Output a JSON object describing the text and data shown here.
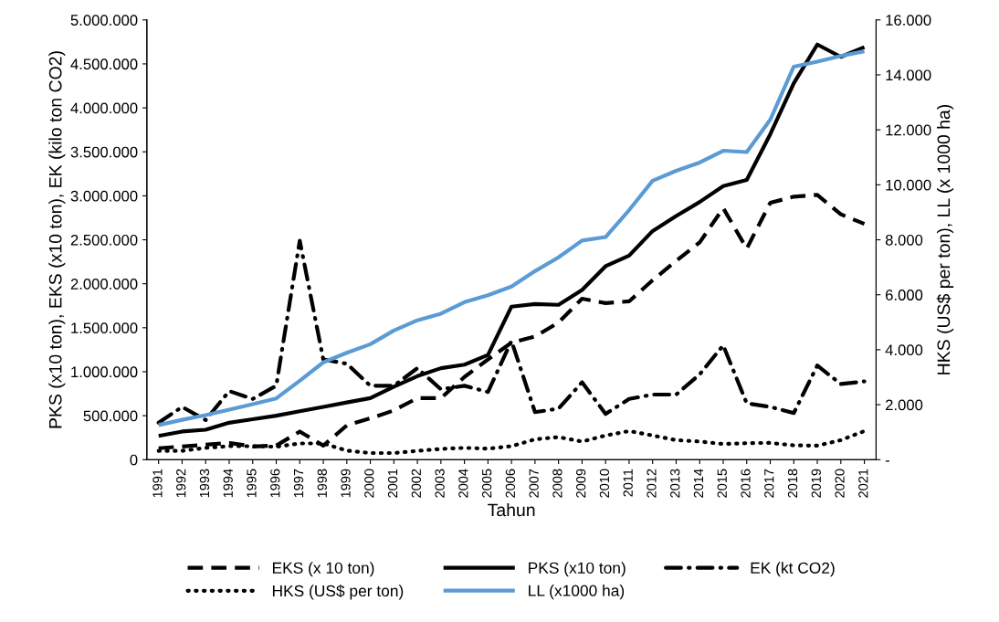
{
  "chart_data": {
    "type": "line",
    "xlabel": "Tahun",
    "ylabel": "PKS (x10 ton), EKS (x10 ton), EK (kilo ton CO2)",
    "y2label": "HKS (US$ per ton), LL (x 1000 ha)",
    "categories": [
      "1991",
      "1992",
      "1993",
      "1994",
      "1995",
      "1996",
      "1997",
      "1998",
      "1999",
      "2000",
      "2001",
      "2002",
      "2003",
      "2004",
      "2005",
      "2006",
      "2007",
      "2008",
      "2009",
      "2010",
      "2011",
      "2012",
      "2013",
      "2014",
      "2015",
      "2016",
      "2017",
      "2018",
      "2019",
      "2020",
      "2021"
    ],
    "ylim": [
      0,
      5000000
    ],
    "yticks": [
      0,
      {
        "value": 500000,
        "label": "500.000"
      },
      {
        "value": 1000000,
        "label": "1.000.000"
      },
      {
        "value": 1500000,
        "label": "1.500.000"
      },
      {
        "value": 2000000,
        "label": "2.000.000"
      },
      {
        "value": 2500000,
        "label": "2.500.000"
      },
      {
        "value": 3000000,
        "label": "3.000.000"
      },
      {
        "value": 3500000,
        "label": "3.500.000"
      },
      {
        "value": 4000000,
        "label": "4.000.000"
      },
      {
        "value": 4500000,
        "label": "4.500.000"
      },
      {
        "value": 5000000,
        "label": "5.000.000"
      }
    ],
    "y2lim": [
      0,
      16000
    ],
    "y2ticks": [
      {
        "value": 0,
        "label": "-"
      },
      {
        "value": 2000,
        "label": "2.000"
      },
      {
        "value": 4000,
        "label": "4.000"
      },
      {
        "value": 6000,
        "label": "6.000"
      },
      {
        "value": 8000,
        "label": "8.000"
      },
      {
        "value": 10000,
        "label": "10.000"
      },
      {
        "value": 12000,
        "label": "12.000"
      },
      {
        "value": 14000,
        "label": "14.000"
      },
      {
        "value": 16000,
        "label": "16.000"
      }
    ],
    "grid": false,
    "legend": "bottom",
    "series": [
      {
        "name": "EKS (x 10 ton)",
        "color": "#000000",
        "line_style": "dashed",
        "values": [
          130000,
          150000,
          170000,
          190000,
          150000,
          160000,
          320000,
          160000,
          390000,
          470000,
          560000,
          700000,
          700000,
          940000,
          1140000,
          1330000,
          1400000,
          1560000,
          1830000,
          1780000,
          1800000,
          2040000,
          2260000,
          2470000,
          2860000,
          2400000,
          2920000,
          2990000,
          3010000,
          2790000,
          2680000
        ]
      },
      {
        "name": "PKS (x10 ton)",
        "color": "#000000",
        "line_style": "solid",
        "values": [
          270000,
          320000,
          340000,
          420000,
          460000,
          500000,
          550000,
          600000,
          650000,
          700000,
          830000,
          950000,
          1040000,
          1080000,
          1190000,
          1740000,
          1770000,
          1760000,
          1930000,
          2200000,
          2320000,
          2600000,
          2770000,
          2930000,
          3110000,
          3180000,
          3700000,
          4280000,
          4720000,
          4580000,
          4690000
        ]
      },
      {
        "name": "EK (kt CO2)",
        "color": "#000000",
        "line_style": "dashdot",
        "values": [
          420000,
          600000,
          450000,
          780000,
          690000,
          840000,
          2490000,
          1140000,
          1090000,
          840000,
          840000,
          1040000,
          800000,
          840000,
          770000,
          1350000,
          540000,
          580000,
          880000,
          520000,
          690000,
          740000,
          740000,
          970000,
          1300000,
          640000,
          600000,
          530000,
          1070000,
          860000,
          890000
        ]
      },
      {
        "name": "HKS (US$ per ton)",
        "color": "#000000",
        "line_style": "dotted",
        "axis": "y2",
        "values": [
          320,
          320,
          430,
          490,
          490,
          470,
          590,
          590,
          330,
          240,
          240,
          320,
          390,
          430,
          400,
          490,
          740,
          820,
          660,
          880,
          1040,
          880,
          710,
          660,
          570,
          600,
          610,
          520,
          510,
          710,
          1040
        ]
      },
      {
        "name": "LL (x1000 ha)",
        "color": "#5b9bd5",
        "line_style": "solid",
        "axis": "y2",
        "values": [
          1260,
          1450,
          1620,
          1820,
          2020,
          2230,
          2870,
          3540,
          3890,
          4200,
          4700,
          5070,
          5310,
          5730,
          5980,
          6300,
          6860,
          7360,
          7970,
          8100,
          9080,
          10150,
          10510,
          10810,
          11240,
          11190,
          12370,
          14300,
          14480,
          14690,
          14860
        ]
      }
    ]
  }
}
